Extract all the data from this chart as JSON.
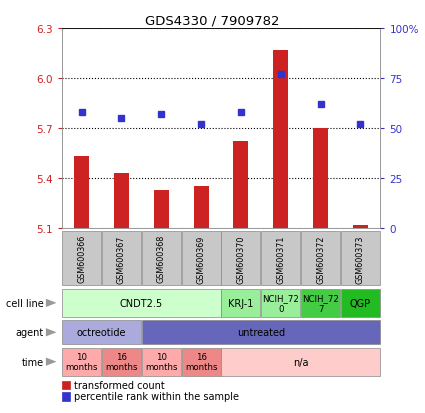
{
  "title": "GDS4330 / 7909782",
  "samples": [
    "GSM600366",
    "GSM600367",
    "GSM600368",
    "GSM600369",
    "GSM600370",
    "GSM600371",
    "GSM600372",
    "GSM600373"
  ],
  "bar_values": [
    5.53,
    5.43,
    5.33,
    5.35,
    5.62,
    6.17,
    5.7,
    5.12
  ],
  "bar_base": 5.1,
  "dot_values": [
    58,
    55,
    57,
    52,
    58,
    77,
    62,
    52
  ],
  "ylim": [
    5.1,
    6.3
  ],
  "yticks_left": [
    5.1,
    5.4,
    5.7,
    6.0,
    6.3
  ],
  "yticks_right_vals": [
    0,
    25,
    50,
    75,
    100
  ],
  "yticks_right_labels": [
    "0",
    "25",
    "50",
    "75",
    "100%"
  ],
  "bar_color": "#cc2222",
  "dot_color": "#3333cc",
  "cell_line_groups": [
    {
      "label": "CNDT2.5",
      "start": 0,
      "end": 4,
      "color": "#ccffcc"
    },
    {
      "label": "KRJ-1",
      "start": 4,
      "end": 5,
      "color": "#99ee99"
    },
    {
      "label": "NCIH_72\n0",
      "start": 5,
      "end": 6,
      "color": "#99ee99"
    },
    {
      "label": "NCIH_72\n7",
      "start": 6,
      "end": 7,
      "color": "#44cc44"
    },
    {
      "label": "QGP",
      "start": 7,
      "end": 8,
      "color": "#22bb22"
    }
  ],
  "agent_groups": [
    {
      "label": "octreotide",
      "start": 0,
      "end": 2,
      "color": "#aaaadd"
    },
    {
      "label": "untreated",
      "start": 2,
      "end": 8,
      "color": "#6666bb"
    }
  ],
  "time_groups": [
    {
      "label": "10\nmonths",
      "start": 0,
      "end": 1,
      "color": "#ffaaaa"
    },
    {
      "label": "16\nmonths",
      "start": 1,
      "end": 2,
      "color": "#ee8888"
    },
    {
      "label": "10\nmonths",
      "start": 2,
      "end": 3,
      "color": "#ffaaaa"
    },
    {
      "label": "16\nmonths",
      "start": 3,
      "end": 4,
      "color": "#ee8888"
    },
    {
      "label": "n/a",
      "start": 4,
      "end": 8,
      "color": "#ffcccc"
    }
  ],
  "sample_bg": "#c8c8c8",
  "legend_items": [
    {
      "label": "transformed count",
      "color": "#cc2222"
    },
    {
      "label": "percentile rank within the sample",
      "color": "#3333cc"
    }
  ]
}
